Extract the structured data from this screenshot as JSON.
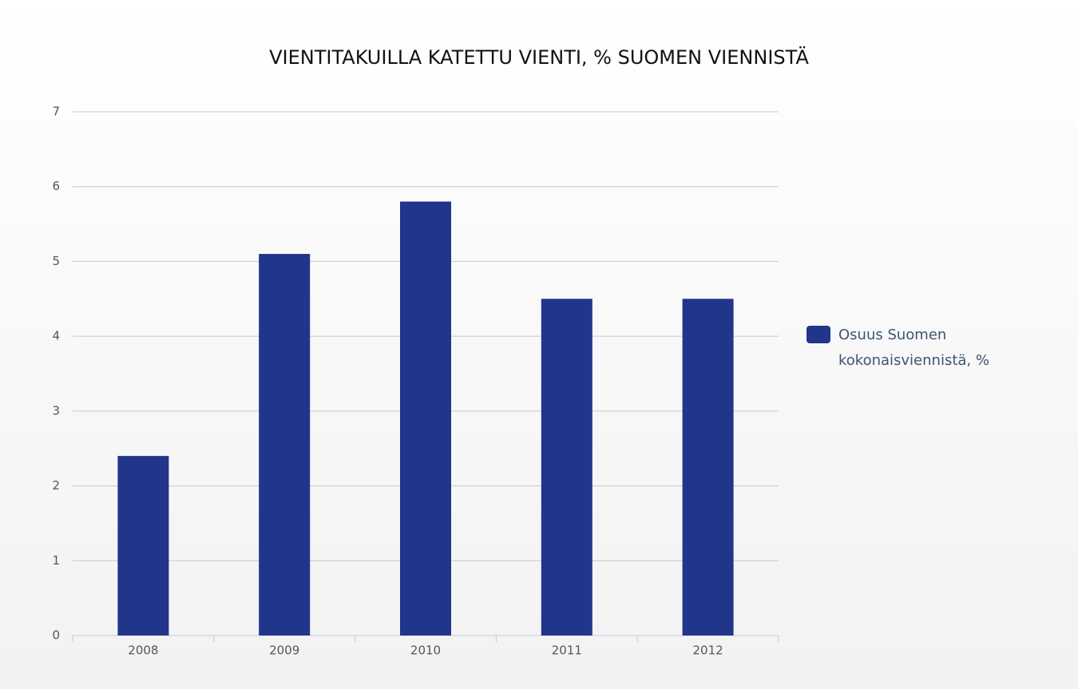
{
  "chart_data": {
    "type": "bar",
    "title": "VIENTITAKUILLA KATETTU VIENTI, % SUOMEN VIENNISTÄ",
    "categories": [
      "2008",
      "2009",
      "2010",
      "2011",
      "2012"
    ],
    "series": [
      {
        "name": "Osuus Suomen kokonaisviennistä, %",
        "color": "#21358b",
        "values": [
          2.4,
          5.1,
          5.8,
          4.5,
          4.5
        ]
      }
    ],
    "ylim": [
      0,
      7
    ],
    "yticks": [
      0,
      1,
      2,
      3,
      4,
      5,
      6,
      7
    ],
    "grid": true,
    "legend": "right"
  }
}
